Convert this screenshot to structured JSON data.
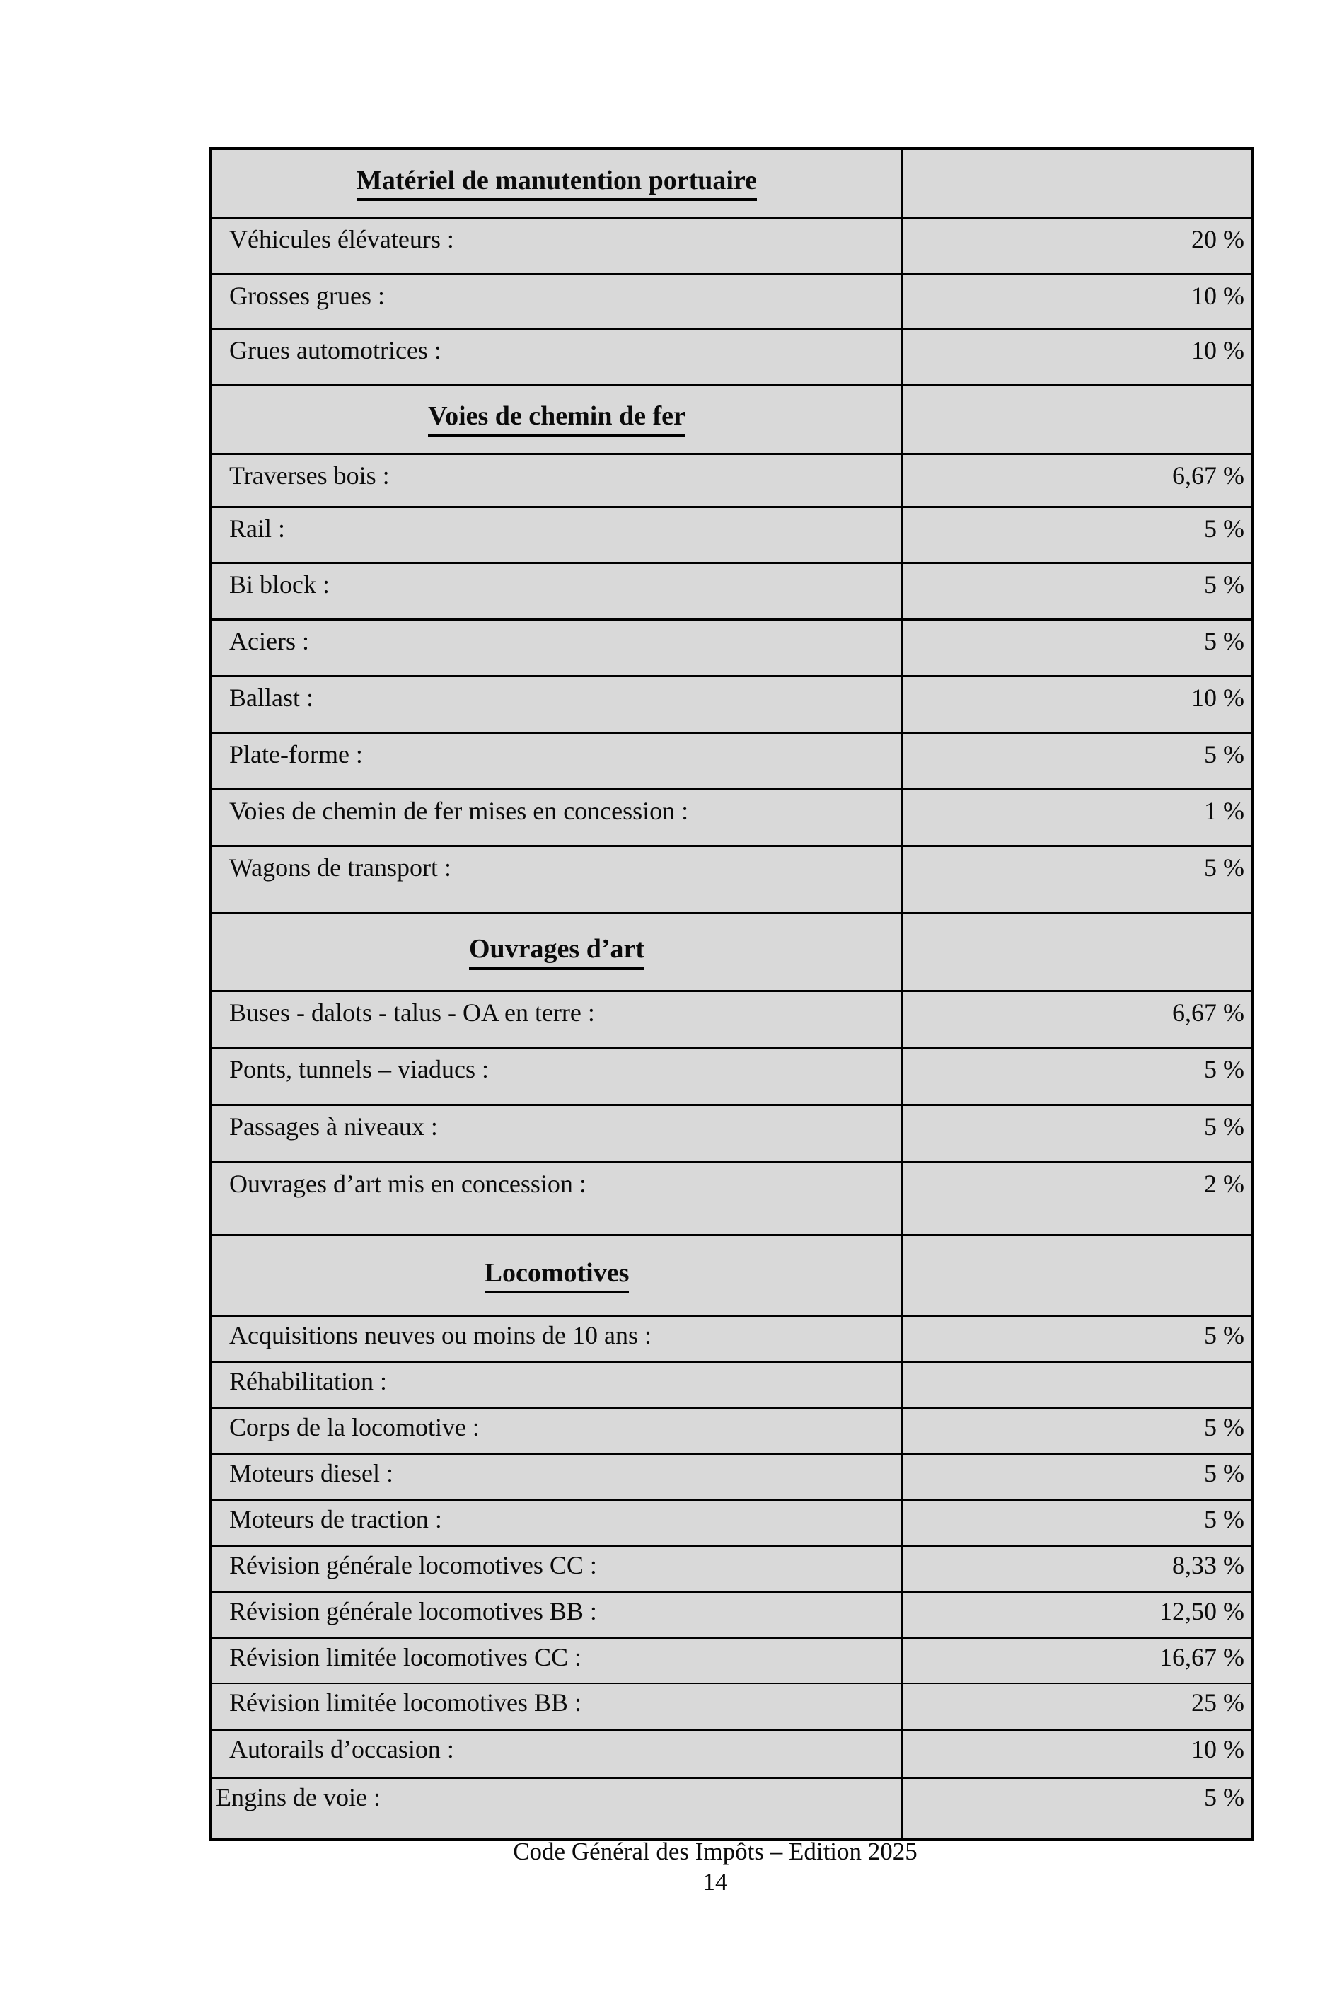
{
  "colors": {
    "cell_bg": "#d9d9d9",
    "border": "#000000",
    "text": "#0b0b0b",
    "page_bg": "#ffffff"
  },
  "table": {
    "rows": [
      {
        "type": "section",
        "label": "Matériel de manutention portuaire",
        "value": "",
        "h": 94
      },
      {
        "type": "item",
        "label": "Véhicules élévateurs :",
        "value": "20 %",
        "h": 80
      },
      {
        "type": "item",
        "label": "Grosses grues :",
        "value": "10 %",
        "h": 77
      },
      {
        "type": "item",
        "label": "Grues automotrices :",
        "value": "10 %",
        "h": 79
      },
      {
        "type": "section",
        "label": "Voies de chemin de fer",
        "value": "",
        "h": 98
      },
      {
        "type": "item",
        "label": "Traverses bois :",
        "value": "6,67 %",
        "h": 75
      },
      {
        "type": "item",
        "label": "Rail :",
        "value": "5 %",
        "h": 79
      },
      {
        "type": "item",
        "label": "Bi block :",
        "value": "5 %",
        "h": 80
      },
      {
        "type": "item",
        "label": "Aciers :",
        "value": "5 %",
        "h": 80
      },
      {
        "type": "item",
        "label": "Ballast :",
        "value": "10 %",
        "h": 80
      },
      {
        "type": "item",
        "label": "Plate-forme :",
        "value": "5 %",
        "h": 80
      },
      {
        "type": "item",
        "label": "Voies de chemin de fer mises en concession :",
        "value": "1 %",
        "h": 80
      },
      {
        "type": "item",
        "label": "Wagons de transport :",
        "value": "5 %",
        "h": 95
      },
      {
        "type": "section",
        "label": "Ouvrages d’art",
        "value": "",
        "h": 110
      },
      {
        "type": "item",
        "label": "Buses - dalots - talus - OA en terre :",
        "value": "6,67 %",
        "h": 80
      },
      {
        "type": "item",
        "label": "Ponts, tunnels – viaducs :",
        "value": "5 %",
        "h": 81
      },
      {
        "type": "item",
        "label": "Passages à niveaux :",
        "value": "5 %",
        "h": 81
      },
      {
        "type": "item",
        "label": "Ouvrages d’art mis en concession :",
        "value": "2 %",
        "h": 103
      },
      {
        "type": "section",
        "label": "Locomotives",
        "value": "",
        "h": 115
      },
      {
        "type": "item",
        "thin": true,
        "label": "Acquisitions neuves ou moins de 10 ans :",
        "value": "5 %",
        "h": 65
      },
      {
        "type": "item",
        "thin": true,
        "label": "Réhabilitation :",
        "value": "",
        "h": 65
      },
      {
        "type": "item",
        "thin": true,
        "label": "Corps de la locomotive :",
        "value": "5 %",
        "h": 65
      },
      {
        "type": "item",
        "thin": true,
        "label": "Moteurs diesel :",
        "value": "5 %",
        "h": 65
      },
      {
        "type": "item",
        "thin": true,
        "label": "Moteurs de traction :",
        "value": "5 %",
        "h": 65
      },
      {
        "type": "item",
        "thin": true,
        "label": "Révision générale locomotives CC :",
        "value": "8,33 %",
        "h": 65
      },
      {
        "type": "item",
        "thin": true,
        "label": "Révision générale locomotives BB :",
        "value": "12,50 %",
        "h": 65
      },
      {
        "type": "item",
        "thin": true,
        "label": "Révision limitée locomotives CC :",
        "value": "16,67 %",
        "h": 64
      },
      {
        "type": "item",
        "thin": true,
        "label": "Révision limitée locomotives BB :",
        "value": "25 %",
        "h": 66
      },
      {
        "type": "item",
        "thin": true,
        "label": "Autorails d’occasion :",
        "value": "10 %",
        "h": 68
      },
      {
        "type": "item",
        "thin": true,
        "flush": true,
        "label": "Engins de voie :",
        "value": "5 %",
        "h": 86
      }
    ]
  },
  "footer": {
    "line1": "Code Général des Impôts – Edition 2025",
    "page_number": "14"
  }
}
